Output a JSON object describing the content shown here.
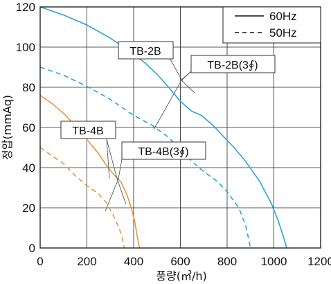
{
  "chart_data": {
    "type": "line",
    "xlabel": "풍량(㎥/h)",
    "ylabel": "정압(mmAq)",
    "xlim": [
      0,
      1200
    ],
    "ylim": [
      0,
      120
    ],
    "xticks": [
      0,
      200,
      400,
      600,
      800,
      1000,
      1200
    ],
    "yticks": [
      0,
      20,
      40,
      60,
      80,
      100,
      120
    ],
    "grid": true,
    "legend": {
      "placement": "top-right",
      "entries": [
        {
          "label": "60Hz",
          "style": "solid"
        },
        {
          "label": "50Hz",
          "style": "dashed"
        }
      ]
    },
    "series": [
      {
        "model": "TB-2B",
        "freq": "60Hz",
        "color": "#2aa3d6",
        "dash": false,
        "x": [
          0,
          100,
          200,
          300,
          400,
          450,
          500,
          550,
          600,
          650,
          690,
          740,
          780,
          830,
          880,
          940,
          990,
          1020,
          1040,
          1055
        ],
        "y": [
          120,
          116,
          111,
          104.5,
          96.5,
          92,
          86.5,
          80,
          73,
          68,
          66,
          61,
          56,
          50,
          43,
          33,
          22,
          13,
          6,
          0
        ]
      },
      {
        "model": "TB-2B",
        "freq": "50Hz",
        "color": "#2aa3d6",
        "dash": true,
        "x": [
          0,
          100,
          200,
          300,
          400,
          480,
          550,
          600,
          650,
          700,
          760,
          800,
          850,
          880,
          900
        ],
        "y": [
          90,
          86,
          80.5,
          74,
          66,
          61,
          55,
          49,
          43,
          38,
          33,
          28,
          20,
          11,
          0
        ]
      },
      {
        "model": "TB-4B",
        "freq": "60Hz",
        "color": "#e8953c",
        "dash": false,
        "x": [
          0,
          50,
          100,
          150,
          200,
          250,
          290,
          320,
          345,
          370,
          390,
          405,
          415,
          425
        ],
        "y": [
          76,
          72,
          67,
          61,
          54,
          47,
          40,
          36,
          33,
          27,
          20,
          13,
          6,
          0
        ]
      },
      {
        "model": "TB-4B",
        "freq": "50Hz",
        "color": "#e8953c",
        "dash": true,
        "x": [
          0,
          50,
          100,
          150,
          200,
          250,
          280,
          310,
          330,
          350,
          360
        ],
        "y": [
          50,
          46,
          42,
          36,
          31,
          27,
          23,
          17,
          12,
          6,
          0
        ]
      }
    ],
    "annotations": [
      {
        "text": "TB-2B"
      },
      {
        "text": "TB-2B(3∮)"
      },
      {
        "text": "TB-4B"
      },
      {
        "text": "TB-4B(3∮)"
      }
    ]
  }
}
